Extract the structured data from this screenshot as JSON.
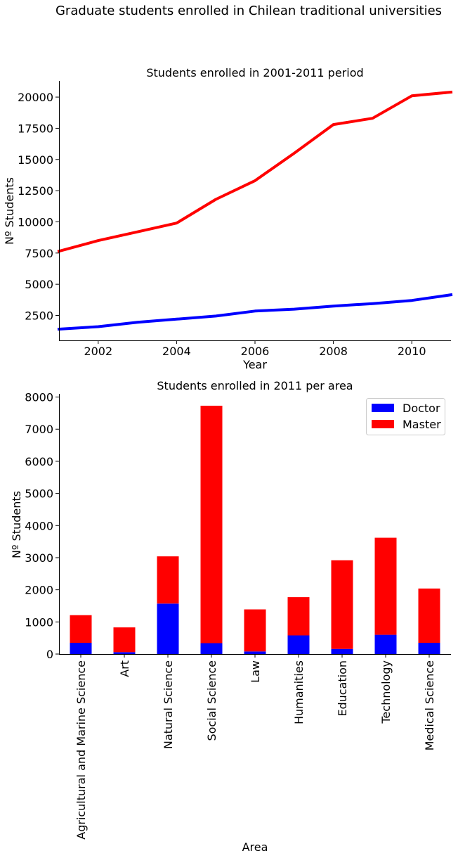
{
  "figure": {
    "title": "Graduate students enrolled in Chilean traditional universities"
  },
  "chart_data": [
    {
      "type": "line",
      "title": "Students enrolled in 2001-2011 period",
      "xlabel": "Year",
      "ylabel": "Nº Students",
      "x": [
        2001,
        2002,
        2003,
        2004,
        2005,
        2006,
        2007,
        2008,
        2009,
        2010,
        2011
      ],
      "xlim": [
        2001,
        2011
      ],
      "ylim": [
        500,
        21300
      ],
      "x_ticks": [
        2002,
        2004,
        2006,
        2008,
        2010
      ],
      "y_ticks": [
        2500,
        5000,
        7500,
        10000,
        12500,
        15000,
        17500,
        20000
      ],
      "grid": false,
      "series": [
        {
          "color": "#ff0000",
          "values": [
            7650,
            8500,
            9200,
            9900,
            11800,
            13300,
            15500,
            17800,
            18300,
            20100,
            20400
          ]
        },
        {
          "color": "#0000ff",
          "values": [
            1400,
            1600,
            1950,
            2200,
            2450,
            2850,
            3000,
            3250,
            3450,
            3700,
            4150
          ]
        }
      ]
    },
    {
      "type": "bar",
      "stacked": true,
      "title": "Students enrolled in 2011 per area",
      "xlabel": "Area",
      "ylabel": "Nº Students",
      "categories": [
        "Agricultural and Marine Science",
        "Art",
        "Natural Science",
        "Social Science",
        "Law",
        "Humanities",
        "Education",
        "Technology",
        "Medical Science"
      ],
      "ylim": [
        0,
        8100
      ],
      "y_ticks": [
        0,
        1000,
        2000,
        3000,
        4000,
        5000,
        6000,
        7000,
        8000
      ],
      "grid": false,
      "legend_position": "top-right",
      "series": [
        {
          "name": "Doctor",
          "color": "#0000ff",
          "values": [
            350,
            60,
            1570,
            340,
            80,
            580,
            160,
            600,
            350
          ]
        },
        {
          "name": "Master",
          "color": "#ff0000",
          "values": [
            860,
            770,
            1470,
            7390,
            1310,
            1190,
            2760,
            3020,
            1690
          ]
        }
      ]
    }
  ]
}
